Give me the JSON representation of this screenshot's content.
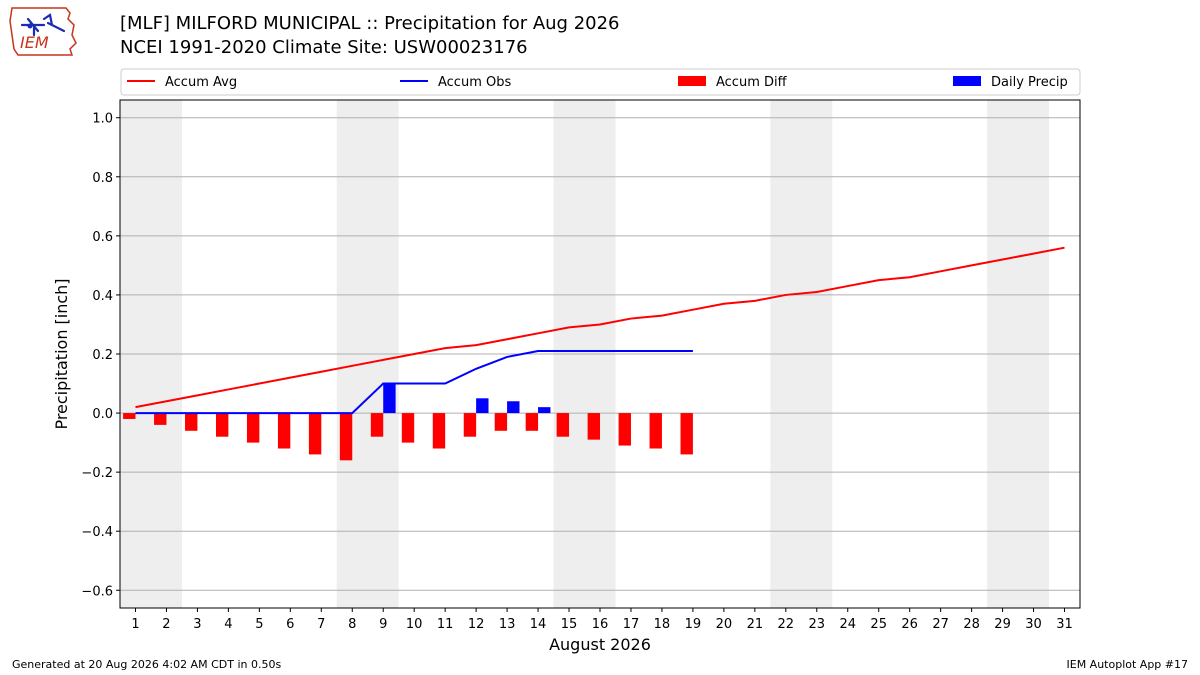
{
  "header": {
    "title_line1": "[MLF] MILFORD MUNICIPAL :: Precipitation for Aug 2026",
    "title_line2": "NCEI 1991-2020 Climate Site: USW00023176",
    "logo_text": "IEM"
  },
  "footer": {
    "generated": "Generated at 20 Aug 2026 4:02 AM CDT in 0.50s",
    "app": "IEM Autoplot App #17"
  },
  "chart_data": {
    "type": "bar",
    "xlabel": "August 2026",
    "ylabel": "Precipitation [inch]",
    "ylim": [
      -0.66,
      1.06
    ],
    "yticks": [
      -0.6,
      -0.4,
      -0.2,
      0.0,
      0.2,
      0.4,
      0.6,
      0.8,
      1.0
    ],
    "ytick_labels": [
      "−0.6",
      "−0.4",
      "−0.2",
      "0.0",
      "0.2",
      "0.4",
      "0.6",
      "0.8",
      "1.0"
    ],
    "xlim": [
      0.5,
      31.5
    ],
    "days": [
      1,
      2,
      3,
      4,
      5,
      6,
      7,
      8,
      9,
      10,
      11,
      12,
      13,
      14,
      15,
      16,
      17,
      18,
      19,
      20,
      21,
      22,
      23,
      24,
      25,
      26,
      27,
      28,
      29,
      30,
      31
    ],
    "grid": "horizontal",
    "weekend_shading": [
      [
        1,
        2
      ],
      [
        8,
        9
      ],
      [
        15,
        16
      ],
      [
        22,
        23
      ],
      [
        29,
        30
      ]
    ],
    "weekend_color": "#eeeeee",
    "legend": {
      "position": "top",
      "entries": [
        {
          "label": "Accum Avg",
          "kind": "line",
          "color": "#ff0000"
        },
        {
          "label": "Accum Obs",
          "kind": "line",
          "color": "#0000ff"
        },
        {
          "label": "Accum Diff",
          "kind": "bar",
          "color": "#ff0000"
        },
        {
          "label": "Daily Precip",
          "kind": "bar",
          "color": "#0000ff"
        }
      ]
    },
    "series": [
      {
        "name": "Accum Avg",
        "type": "line",
        "color": "#ff0000",
        "values": [
          0.02,
          0.04,
          0.06,
          0.08,
          0.1,
          0.12,
          0.14,
          0.16,
          0.18,
          0.2,
          0.22,
          0.23,
          0.25,
          0.27,
          0.29,
          0.3,
          0.32,
          0.33,
          0.35,
          0.37,
          0.38,
          0.4,
          0.41,
          0.43,
          0.45,
          0.46,
          0.48,
          0.5,
          0.52,
          0.54,
          0.56
        ]
      },
      {
        "name": "Accum Obs",
        "type": "line",
        "color": "#0000ff",
        "values": [
          0.0,
          0.0,
          0.0,
          0.0,
          0.0,
          0.0,
          0.0,
          0.0,
          0.1,
          0.1,
          0.1,
          0.15,
          0.19,
          0.21,
          0.21,
          0.21,
          0.21,
          0.21,
          0.21
        ]
      },
      {
        "name": "Accum Diff",
        "type": "bar",
        "color": "#ff0000",
        "values": [
          -0.02,
          -0.04,
          -0.06,
          -0.08,
          -0.1,
          -0.12,
          -0.14,
          -0.16,
          -0.08,
          -0.1,
          -0.12,
          -0.08,
          -0.06,
          -0.06,
          -0.08,
          -0.09,
          -0.11,
          -0.12,
          -0.14
        ]
      },
      {
        "name": "Daily Precip",
        "type": "bar",
        "color": "#0000ff",
        "values": [
          0.0,
          0.0,
          0.0,
          0.0,
          0.0,
          0.0,
          0.0,
          0.0,
          0.1,
          0.0,
          0.0,
          0.05,
          0.04,
          0.02,
          0.0,
          0.0,
          0.0,
          0.0,
          0.0
        ]
      }
    ]
  }
}
